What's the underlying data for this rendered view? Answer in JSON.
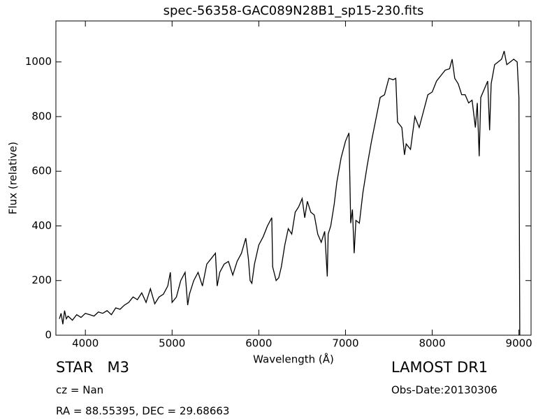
{
  "chart_data": {
    "type": "line",
    "title": "spec-56358-GAC089N28B1_sp15-230.fits",
    "x_label": "Wavelength (Å)",
    "y_label": "Flux (relative)",
    "annotations": [
      "STAR   M3",
      "cz = Nan",
      "RA = 88.55395, DEC = 29.68663",
      "LAMOST DR1",
      "Obs-Date:20130306"
    ],
    "xlim": [
      3660,
      9140
    ],
    "xticks": [
      4000,
      5000,
      6000,
      7000,
      8000,
      9000
    ],
    "ylim": [
      0,
      1150
    ],
    "yticks": [
      0,
      200,
      400,
      600,
      800,
      1000
    ],
    "grid": false,
    "series": [
      {
        "color": "#000000",
        "x": [
          3700,
          3720,
          3740,
          3760,
          3780,
          3800,
          3850,
          3900,
          3950,
          4000,
          4050,
          4100,
          4150,
          4200,
          4250,
          4300,
          4350,
          4400,
          4450,
          4500,
          4550,
          4600,
          4650,
          4700,
          4750,
          4800,
          4850,
          4900,
          4950,
          4980,
          5000,
          5050,
          5100,
          5150,
          5180,
          5200,
          5250,
          5300,
          5350,
          5400,
          5450,
          5500,
          5520,
          5550,
          5600,
          5650,
          5700,
          5750,
          5800,
          5850,
          5880,
          5900,
          5920,
          5950,
          6000,
          6050,
          6100,
          6150,
          6160,
          6200,
          6230,
          6260,
          6300,
          6340,
          6380,
          6420,
          6460,
          6500,
          6530,
          6560,
          6600,
          6640,
          6680,
          6720,
          6760,
          6790,
          6800,
          6830,
          6870,
          6900,
          6950,
          7000,
          7040,
          7060,
          7080,
          7100,
          7120,
          7160,
          7200,
          7250,
          7300,
          7350,
          7400,
          7450,
          7500,
          7550,
          7580,
          7600,
          7650,
          7680,
          7700,
          7750,
          7800,
          7850,
          7900,
          7950,
          8000,
          8050,
          8100,
          8150,
          8200,
          8230,
          8260,
          8300,
          8340,
          8380,
          8420,
          8460,
          8498,
          8520,
          8542,
          8560,
          8600,
          8640,
          8662,
          8680,
          8720,
          8760,
          8800,
          8830,
          8860,
          8900,
          8940,
          8980,
          9000,
          9010
        ],
        "values": [
          60,
          80,
          40,
          90,
          60,
          70,
          55,
          75,
          65,
          80,
          75,
          70,
          85,
          80,
          90,
          75,
          100,
          95,
          110,
          120,
          140,
          130,
          155,
          120,
          170,
          115,
          140,
          150,
          180,
          230,
          120,
          140,
          200,
          230,
          110,
          150,
          200,
          230,
          180,
          260,
          280,
          300,
          180,
          230,
          260,
          270,
          220,
          270,
          300,
          355,
          280,
          200,
          190,
          260,
          330,
          360,
          400,
          430,
          250,
          200,
          210,
          250,
          330,
          390,
          370,
          450,
          470,
          500,
          430,
          490,
          450,
          440,
          370,
          340,
          380,
          215,
          370,
          400,
          480,
          560,
          650,
          710,
          740,
          410,
          460,
          300,
          420,
          410,
          520,
          620,
          710,
          790,
          870,
          880,
          940,
          935,
          940,
          780,
          760,
          660,
          700,
          680,
          800,
          760,
          820,
          880,
          890,
          930,
          950,
          970,
          975,
          1010,
          940,
          920,
          880,
          880,
          850,
          860,
          760,
          850,
          655,
          870,
          900,
          930,
          750,
          920,
          990,
          1000,
          1010,
          1040,
          990,
          1000,
          1010,
          1000,
          870,
          0
        ]
      }
    ]
  }
}
